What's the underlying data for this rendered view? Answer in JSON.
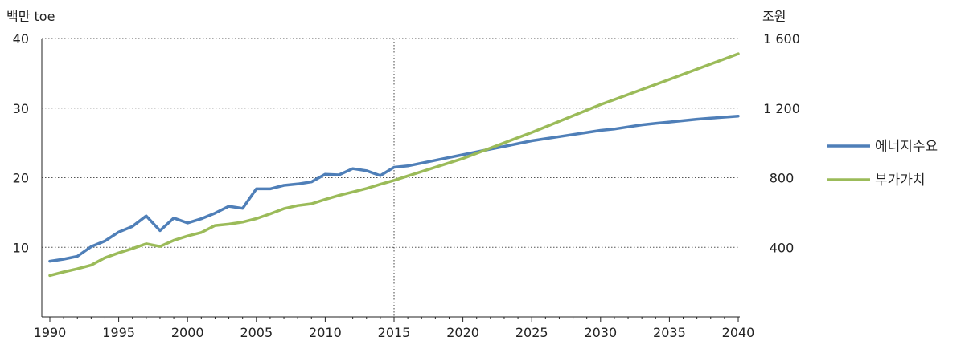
{
  "chart_data": {
    "type": "line",
    "y_left_label": "백만 toe",
    "y_right_label": "조원",
    "x_ticks": [
      1990,
      1995,
      2000,
      2005,
      2010,
      2015,
      2020,
      2025,
      2030,
      2035,
      2040
    ],
    "y_left_ticks": [
      {
        "value": 10,
        "label": "10"
      },
      {
        "value": 20,
        "label": "20"
      },
      {
        "value": 30,
        "label": "30"
      },
      {
        "value": 40,
        "label": "40"
      }
    ],
    "y_right_ticks": [
      {
        "value": 400,
        "label": "400"
      },
      {
        "value": 800,
        "label": "800"
      },
      {
        "value": 1200,
        "label": "1 200"
      },
      {
        "value": 1600,
        "label": "1 600"
      }
    ],
    "xlim": [
      1990,
      2040
    ],
    "ylim_left": [
      0,
      40
    ],
    "ylim_right": [
      0,
      1600
    ],
    "reference_line_x": 2015,
    "legend_position": "right",
    "grid": "horizontal dotted",
    "series": [
      {
        "name": "에너지수요",
        "axis": "left",
        "color": "#4f7fb8",
        "x": [
          1990,
          1991,
          1992,
          1993,
          1994,
          1995,
          1996,
          1997,
          1998,
          1999,
          2000,
          2001,
          2002,
          2003,
          2004,
          2005,
          2006,
          2007,
          2008,
          2009,
          2010,
          2011,
          2012,
          2013,
          2014,
          2015,
          2016,
          2017,
          2018,
          2019,
          2020,
          2021,
          2022,
          2023,
          2024,
          2025,
          2026,
          2027,
          2028,
          2029,
          2030,
          2031,
          2032,
          2033,
          2034,
          2035,
          2036,
          2037,
          2038,
          2039,
          2040
        ],
        "values": [
          8.0,
          8.3,
          8.7,
          10.1,
          10.9,
          12.2,
          13.0,
          14.5,
          12.4,
          14.2,
          13.5,
          14.1,
          14.9,
          15.9,
          15.6,
          18.4,
          18.4,
          18.9,
          19.1,
          19.4,
          20.5,
          20.4,
          21.3,
          21.0,
          20.3,
          21.5,
          21.7,
          22.1,
          22.5,
          22.9,
          23.3,
          23.7,
          24.1,
          24.5,
          24.9,
          25.3,
          25.6,
          25.9,
          26.2,
          26.5,
          26.8,
          27.0,
          27.3,
          27.6,
          27.8,
          28.0,
          28.2,
          28.4,
          28.55,
          28.7,
          28.85
        ]
      },
      {
        "name": "부가가치",
        "axis": "right",
        "color": "#9bbb59",
        "x": [
          1990,
          1991,
          1992,
          1993,
          1994,
          1995,
          1996,
          1997,
          1998,
          1999,
          2000,
          2001,
          2002,
          2003,
          2004,
          2005,
          2006,
          2007,
          2008,
          2009,
          2010,
          2011,
          2012,
          2013,
          2014,
          2015,
          2020,
          2025,
          2030,
          2035,
          2040
        ],
        "values": [
          238,
          258,
          276,
          298,
          340,
          368,
          393,
          420,
          405,
          440,
          465,
          485,
          525,
          533,
          545,
          565,
          592,
          622,
          640,
          650,
          675,
          698,
          718,
          738,
          762,
          785,
          910,
          1060,
          1220,
          1365,
          1512
        ]
      }
    ]
  }
}
